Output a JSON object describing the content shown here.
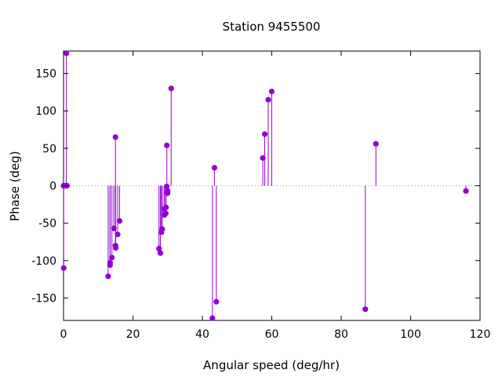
{
  "chart_data": {
    "type": "scatter",
    "style": "impulse-with-markers",
    "title": "Station 9455500",
    "xlabel": "Angular speed (deg/hr)",
    "ylabel": "Phase (deg)",
    "xlim": [
      0,
      120
    ],
    "ylim": [
      -180,
      180
    ],
    "xticks": [
      0,
      20,
      40,
      60,
      80,
      100,
      120
    ],
    "yticks": [
      -150,
      -100,
      -50,
      0,
      50,
      100,
      150
    ],
    "zero_line": true,
    "grid": false,
    "legend": "none",
    "color": "#9400d3",
    "points": [
      {
        "x": 0.0,
        "y": 0.0
      },
      {
        "x": 0.04,
        "y": -110
      },
      {
        "x": 0.08,
        "y": 0.0
      },
      {
        "x": 0.5,
        "y": 0.0
      },
      {
        "x": 0.82,
        "y": 177
      },
      {
        "x": 1.0,
        "y": 0.0
      },
      {
        "x": 12.85,
        "y": -121
      },
      {
        "x": 13.4,
        "y": -106
      },
      {
        "x": 13.4,
        "y": -103
      },
      {
        "x": 13.94,
        "y": -96
      },
      {
        "x": 14.5,
        "y": -57
      },
      {
        "x": 14.96,
        "y": -80
      },
      {
        "x": 14.96,
        "y": 65
      },
      {
        "x": 15.04,
        "y": -83
      },
      {
        "x": 15.59,
        "y": -65
      },
      {
        "x": 16.14,
        "y": -47
      },
      {
        "x": 27.5,
        "y": -84
      },
      {
        "x": 27.9,
        "y": -90
      },
      {
        "x": 28.2,
        "y": -62
      },
      {
        "x": 28.44,
        "y": -58
      },
      {
        "x": 28.98,
        "y": -31
      },
      {
        "x": 29.08,
        "y": -39
      },
      {
        "x": 29.45,
        "y": -37
      },
      {
        "x": 29.53,
        "y": -29
      },
      {
        "x": 29.74,
        "y": -1
      },
      {
        "x": 29.76,
        "y": 54
      },
      {
        "x": 29.96,
        "y": -10
      },
      {
        "x": 30.0,
        "y": -7
      },
      {
        "x": 31.02,
        "y": 130
      },
      {
        "x": 42.9,
        "y": -177
      },
      {
        "x": 43.48,
        "y": 24
      },
      {
        "x": 44.03,
        "y": -155
      },
      {
        "x": 57.42,
        "y": 37
      },
      {
        "x": 57.97,
        "y": 69
      },
      {
        "x": 58.98,
        "y": 115
      },
      {
        "x": 59.98,
        "y": 126
      },
      {
        "x": 86.95,
        "y": -165
      },
      {
        "x": 90.0,
        "y": 56
      },
      {
        "x": 115.94,
        "y": -7
      }
    ]
  }
}
